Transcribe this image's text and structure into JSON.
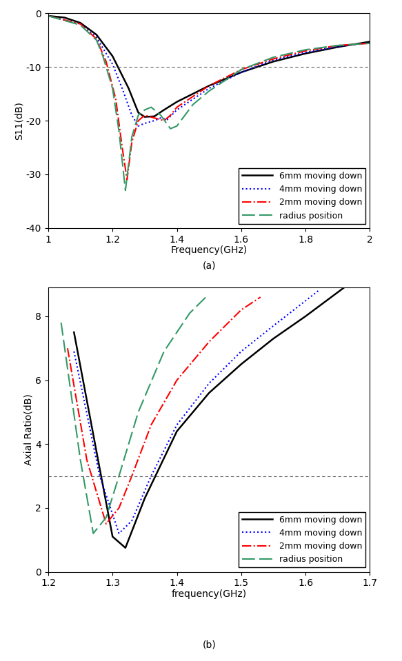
{
  "chart_data": [
    {
      "type": "line",
      "caption": "(a)",
      "x_label": "Frequency(GHz)",
      "y_label": "S11(dB)",
      "xlim": [
        1,
        2
      ],
      "xticks": [
        1,
        1.2,
        1.4,
        1.6,
        1.8,
        2
      ],
      "ylim": [
        -40,
        0
      ],
      "yticks": [
        -40,
        -30,
        -20,
        -10,
        0
      ],
      "reference_y": -10,
      "legend": "lower right",
      "grid": false,
      "series": [
        {
          "name": "6mm moving down",
          "color": "#000000",
          "line_style": "solid",
          "x": [
            1.0,
            1.05,
            1.1,
            1.15,
            1.2,
            1.25,
            1.28,
            1.3,
            1.33,
            1.36,
            1.4,
            1.5,
            1.6,
            1.7,
            1.8,
            1.9,
            2.0
          ],
          "values": [
            -0.5,
            -0.8,
            -1.8,
            -4,
            -8,
            -14,
            -18.5,
            -19.3,
            -19.2,
            -18,
            -16.5,
            -13.5,
            -11,
            -9,
            -7.5,
            -6.3,
            -5.3
          ]
        },
        {
          "name": "4mm moving down",
          "color": "#0000ff",
          "line_style": "dotted",
          "x": [
            1.0,
            1.1,
            1.15,
            1.2,
            1.23,
            1.26,
            1.28,
            1.3,
            1.33,
            1.35,
            1.37,
            1.4,
            1.5,
            1.6,
            1.7,
            1.8,
            1.9,
            2.0
          ],
          "values": [
            -0.5,
            -2,
            -4.5,
            -9.5,
            -14,
            -19,
            -21,
            -20.5,
            -20,
            -19.5,
            -19.8,
            -18,
            -14,
            -11,
            -8.7,
            -7.3,
            -6.2,
            -5.5
          ]
        },
        {
          "name": "2mm moving down",
          "color": "#ff0000",
          "line_style": "dashdot",
          "x": [
            1.0,
            1.1,
            1.15,
            1.18,
            1.21,
            1.23,
            1.245,
            1.26,
            1.28,
            1.3,
            1.33,
            1.36,
            1.38,
            1.4,
            1.5,
            1.6,
            1.7,
            1.8,
            1.9,
            2.0
          ],
          "values": [
            -0.5,
            -2,
            -4.8,
            -9,
            -16,
            -25,
            -31,
            -24,
            -20,
            -19,
            -19.5,
            -20,
            -19,
            -17.5,
            -13.5,
            -10.5,
            -8.5,
            -7,
            -6,
            -5.6
          ]
        },
        {
          "name": "radius position",
          "color": "#339966",
          "line_style": "dashed",
          "x": [
            1.0,
            1.1,
            1.15,
            1.17,
            1.2,
            1.22,
            1.24,
            1.26,
            1.28,
            1.3,
            1.32,
            1.35,
            1.38,
            1.4,
            1.45,
            1.5,
            1.6,
            1.7,
            1.8,
            1.9,
            2.0
          ],
          "values": [
            -0.5,
            -2.2,
            -5,
            -8,
            -14,
            -22,
            -33,
            -23,
            -19,
            -18,
            -17.5,
            -19,
            -21.5,
            -21,
            -17,
            -14.5,
            -10.5,
            -8.2,
            -6.8,
            -6,
            -5.6
          ]
        }
      ]
    },
    {
      "type": "line",
      "caption": "(b)",
      "x_label": "frequency(GHz)",
      "y_label": "Axial Ratio(dB)",
      "xlim": [
        1.2,
        1.7
      ],
      "xticks": [
        1.2,
        1.3,
        1.4,
        1.5,
        1.6,
        1.7
      ],
      "ylim": [
        0,
        8.9
      ],
      "yticks": [
        0,
        2,
        4,
        6,
        8
      ],
      "reference_y": 3,
      "legend": "lower right",
      "grid": false,
      "series": [
        {
          "name": "6mm moving down",
          "color": "#000000",
          "line_style": "solid",
          "x": [
            1.24,
            1.3,
            1.32,
            1.35,
            1.4,
            1.45,
            1.5,
            1.55,
            1.6,
            1.66
          ],
          "values": [
            7.5,
            1.1,
            0.75,
            2.3,
            4.4,
            5.6,
            6.5,
            7.3,
            8.0,
            8.9
          ]
        },
        {
          "name": "4mm moving down",
          "color": "#0000ff",
          "line_style": "dotted",
          "x": [
            1.24,
            1.28,
            1.31,
            1.33,
            1.36,
            1.4,
            1.45,
            1.5,
            1.55,
            1.62
          ],
          "values": [
            6.9,
            3.0,
            1.2,
            1.6,
            3.0,
            4.6,
            5.9,
            6.9,
            7.7,
            8.8
          ]
        },
        {
          "name": "2mm moving down",
          "color": "#ff0000",
          "line_style": "dashdot",
          "x": [
            1.23,
            1.26,
            1.29,
            1.31,
            1.33,
            1.36,
            1.4,
            1.45,
            1.5,
            1.53
          ],
          "values": [
            7.0,
            3.5,
            1.5,
            2.0,
            3.0,
            4.6,
            6.0,
            7.2,
            8.2,
            8.6
          ]
        },
        {
          "name": "radius position",
          "color": "#339966",
          "line_style": "dashed",
          "x": [
            1.22,
            1.25,
            1.27,
            1.29,
            1.31,
            1.34,
            1.38,
            1.42,
            1.445
          ],
          "values": [
            7.8,
            3.5,
            1.2,
            1.7,
            3.0,
            5.0,
            6.9,
            8.1,
            8.6
          ]
        }
      ]
    }
  ]
}
